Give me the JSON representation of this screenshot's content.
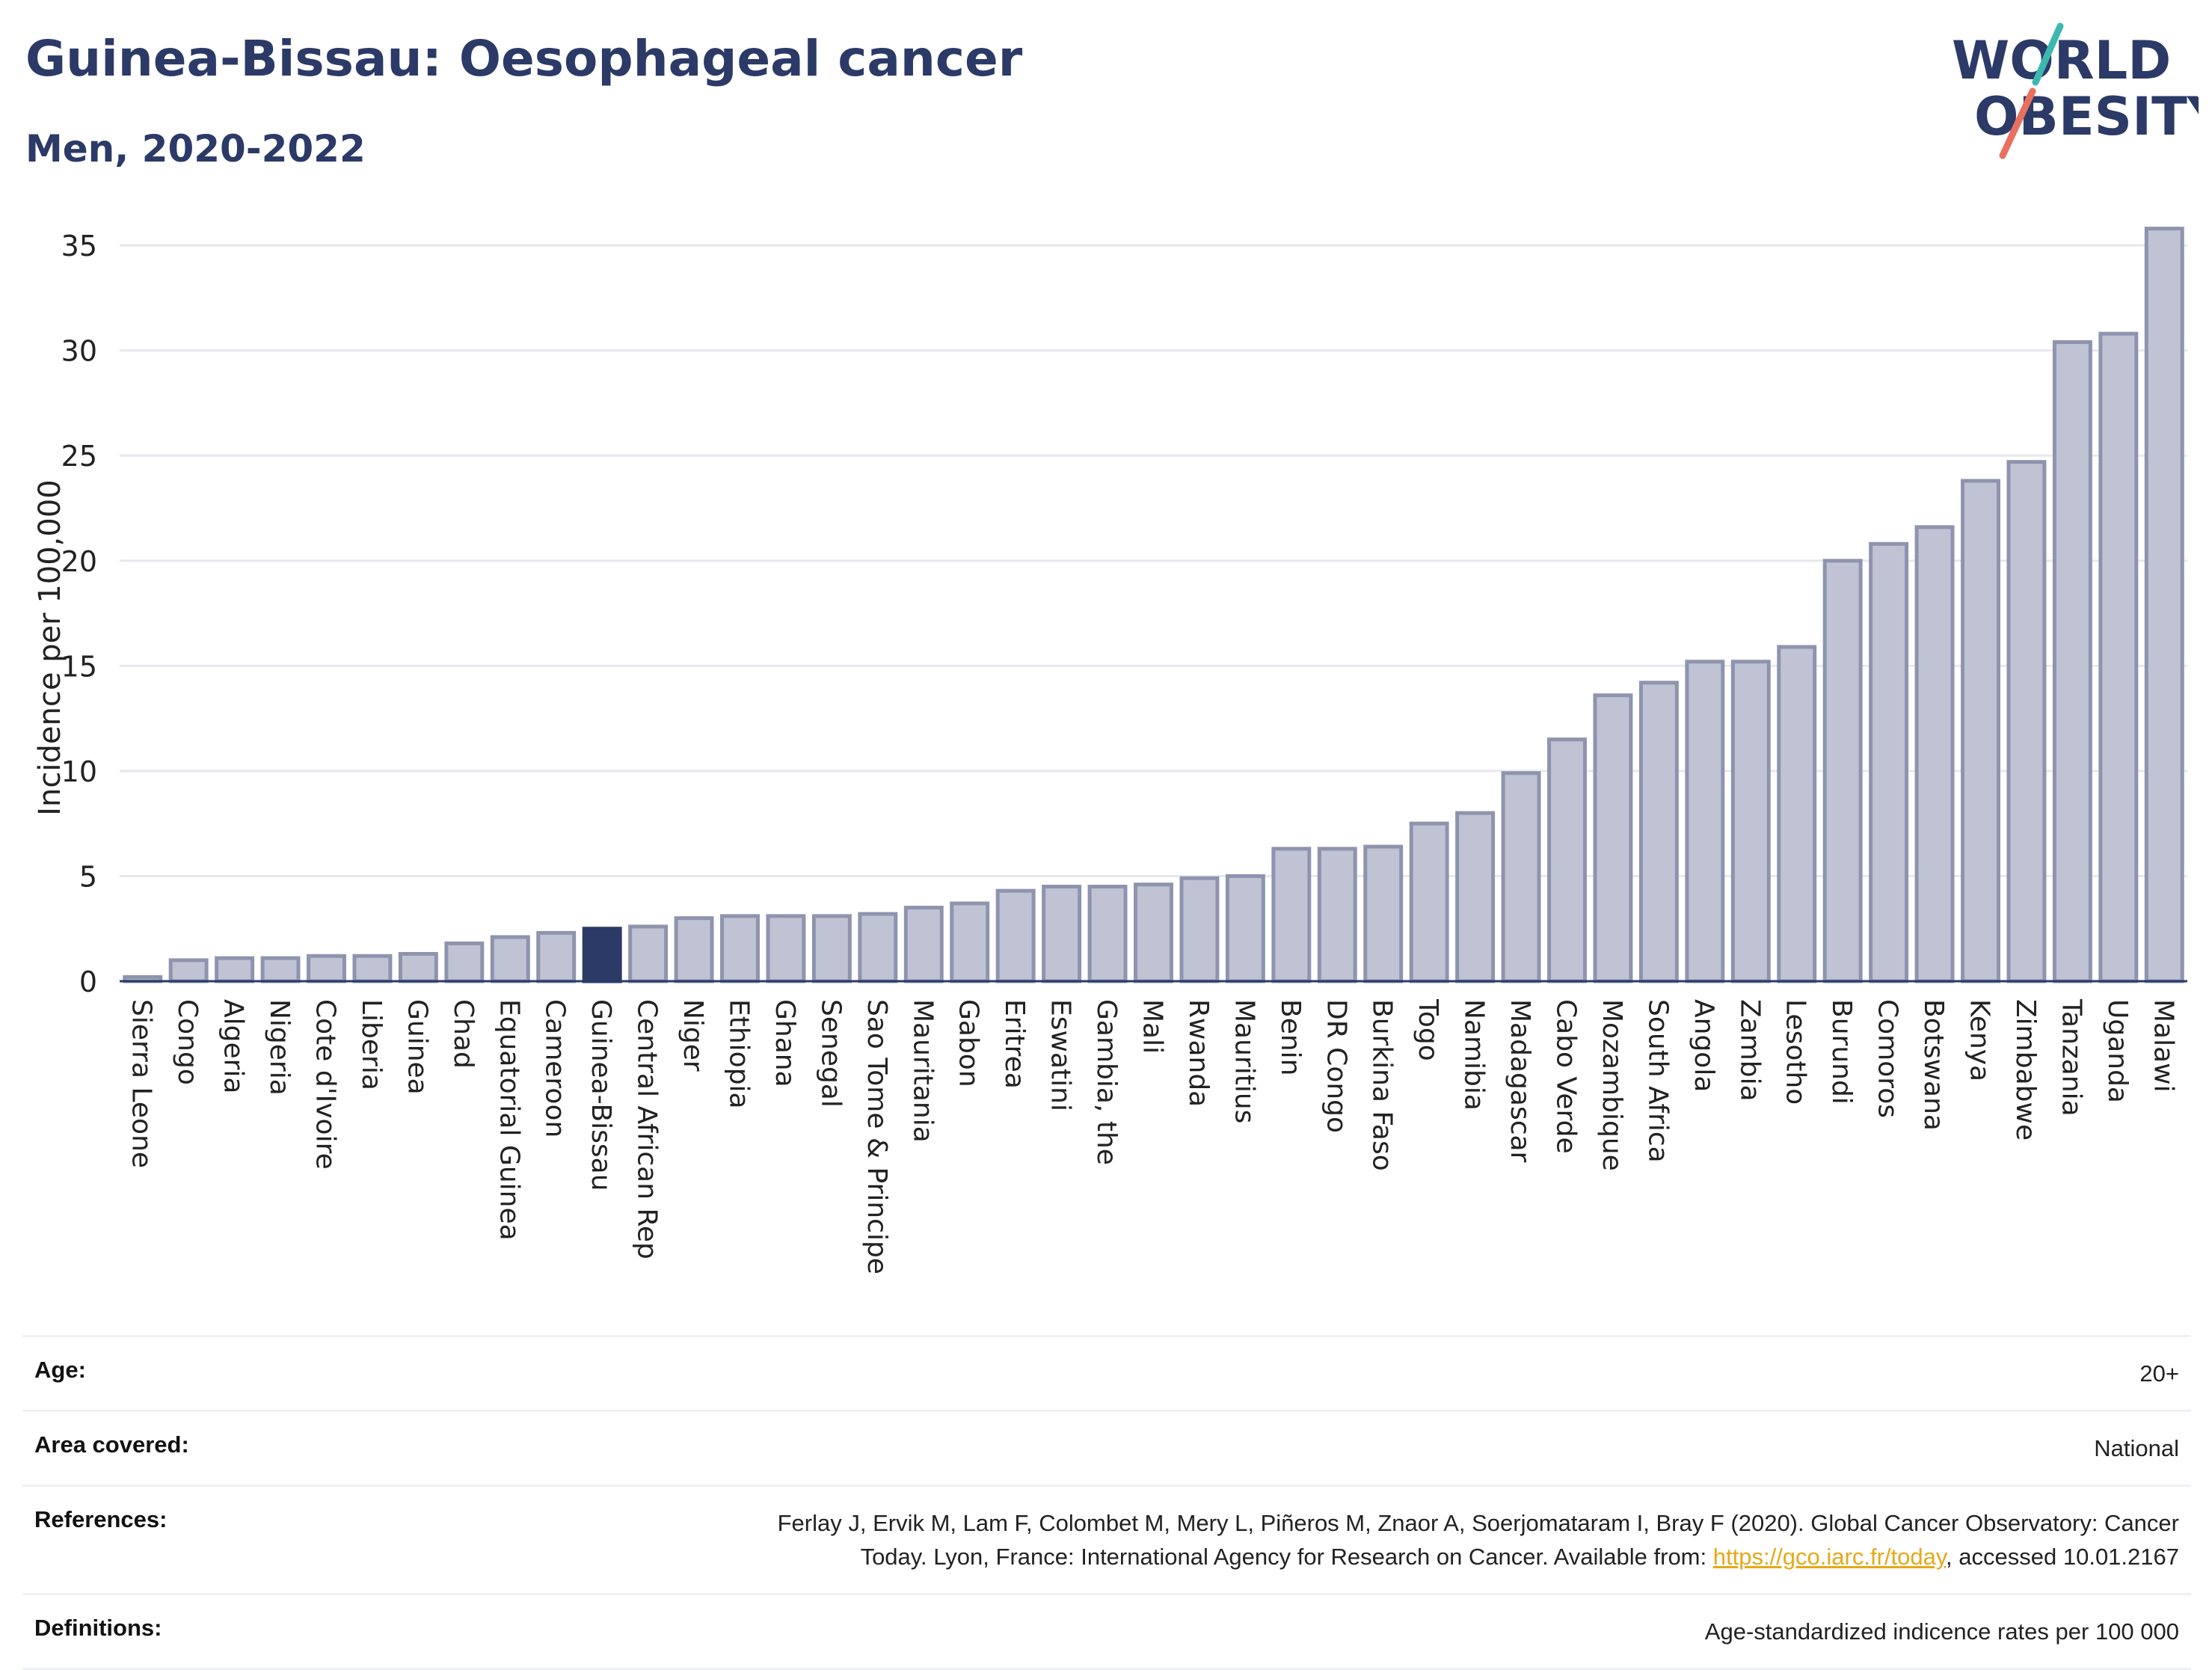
{
  "header": {
    "title": "Guinea-Bissau: Oesophageal cancer",
    "subtitle": "Men, 2020-2022"
  },
  "logo": {
    "line1": "WORLD",
    "line2": "OBESITY",
    "colors": {
      "text": "#2b3a67",
      "teal": "#3cb8b0",
      "coral": "#e8705f"
    }
  },
  "chart_data": {
    "type": "bar",
    "title": "Guinea-Bissau: Oesophageal cancer",
    "subtitle": "Men, 2020-2022",
    "xlabel": "",
    "ylabel": "Incidence per 100,000",
    "ylim": [
      0,
      36
    ],
    "yticks": [
      0,
      5,
      10,
      15,
      20,
      25,
      30,
      35
    ],
    "grid": true,
    "highlight": "Guinea-Bissau",
    "colors": {
      "bar": "#bfc3d3",
      "bar_edge": "#8e94ae",
      "highlight": "#2b3a67",
      "grid": "#e6e8ee",
      "axis": "#2b3a67"
    },
    "categories": [
      "Sierra Leone",
      "Congo",
      "Algeria",
      "Nigeria",
      "Cote d'Ivoire",
      "Liberia",
      "Guinea",
      "Chad",
      "Equatorial Guinea",
      "Cameroon",
      "Guinea-Bissau",
      "Central African Rep",
      "Niger",
      "Ethiopia",
      "Ghana",
      "Senegal",
      "Sao Tome & Principe",
      "Mauritania",
      "Gabon",
      "Eritrea",
      "Eswatini",
      "Gambia, the",
      "Mali",
      "Rwanda",
      "Mauritius",
      "Benin",
      "DR Congo",
      "Burkina Faso",
      "Togo",
      "Namibia",
      "Madagascar",
      "Cabo Verde",
      "Mozambique",
      "South Africa",
      "Angola",
      "Zambia",
      "Lesotho",
      "Burundi",
      "Comoros",
      "Botswana",
      "Kenya",
      "Zimbabwe",
      "Tanzania",
      "Uganda",
      "Malawi"
    ],
    "values": [
      0.2,
      1.0,
      1.1,
      1.1,
      1.2,
      1.2,
      1.3,
      1.8,
      2.1,
      2.3,
      2.5,
      2.6,
      3.0,
      3.1,
      3.1,
      3.1,
      3.2,
      3.5,
      3.7,
      4.3,
      4.5,
      4.5,
      4.6,
      4.9,
      5.0,
      6.3,
      6.3,
      6.4,
      7.5,
      8.0,
      9.9,
      11.5,
      13.6,
      14.2,
      15.2,
      15.2,
      15.9,
      20.0,
      20.8,
      21.6,
      23.8,
      24.7,
      30.4,
      30.8,
      35.8
    ]
  },
  "meta": {
    "age_label": "Age:",
    "age_value": "20+",
    "area_label": "Area covered:",
    "area_value": "National",
    "references_label": "References:",
    "references_line1": "Ferlay J, Ervik M, Lam F, Colombet M, Mery L, Piñeros M, Znaor A, Soerjomataram I, Bray F (2020). Global Cancer Observatory: Cancer",
    "references_line2_prefix": "Today. Lyon, France: International Agency for Research on Cancer. Available from: ",
    "references_link": "https://gco.iarc.fr/today",
    "references_line2_suffix": ", accessed 10.01.2167",
    "definitions_label": "Definitions:",
    "definitions_value": "Age-standardized indicence rates per 100 000"
  }
}
